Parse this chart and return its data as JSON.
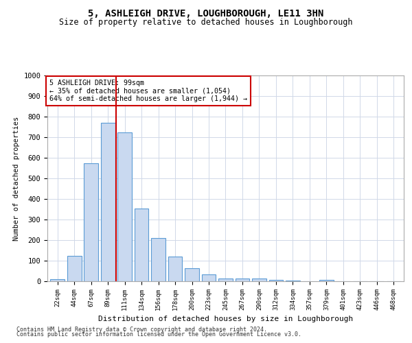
{
  "title": "5, ASHLEIGH DRIVE, LOUGHBOROUGH, LE11 3HN",
  "subtitle": "Size of property relative to detached houses in Loughborough",
  "xlabel": "Distribution of detached houses by size in Loughborough",
  "ylabel": "Number of detached properties",
  "categories": [
    "22sqm",
    "44sqm",
    "67sqm",
    "89sqm",
    "111sqm",
    "134sqm",
    "156sqm",
    "178sqm",
    "200sqm",
    "223sqm",
    "245sqm",
    "267sqm",
    "290sqm",
    "312sqm",
    "334sqm",
    "357sqm",
    "379sqm",
    "401sqm",
    "423sqm",
    "446sqm",
    "468sqm"
  ],
  "values": [
    10,
    125,
    575,
    770,
    725,
    355,
    210,
    120,
    65,
    35,
    15,
    15,
    15,
    8,
    5,
    0,
    8,
    0,
    0,
    0,
    0
  ],
  "bar_color": "#c9d9f0",
  "bar_edge_color": "#5b9bd5",
  "red_line_x": 3.5,
  "annotation_line1": "5 ASHLEIGH DRIVE: 99sqm",
  "annotation_line2": "← 35% of detached houses are smaller (1,054)",
  "annotation_line3": "64% of semi-detached houses are larger (1,944) →",
  "annotation_box_color": "#ffffff",
  "annotation_box_edge": "#cc0000",
  "red_line_color": "#cc0000",
  "ylim": [
    0,
    1000
  ],
  "yticks": [
    0,
    100,
    200,
    300,
    400,
    500,
    600,
    700,
    800,
    900,
    1000
  ],
  "footer1": "Contains HM Land Registry data © Crown copyright and database right 2024.",
  "footer2": "Contains public sector information licensed under the Open Government Licence v3.0.",
  "bg_color": "#ffffff",
  "grid_color": "#d0d8e8",
  "title_fontsize": 10,
  "subtitle_fontsize": 8.5,
  "bar_width": 0.85
}
